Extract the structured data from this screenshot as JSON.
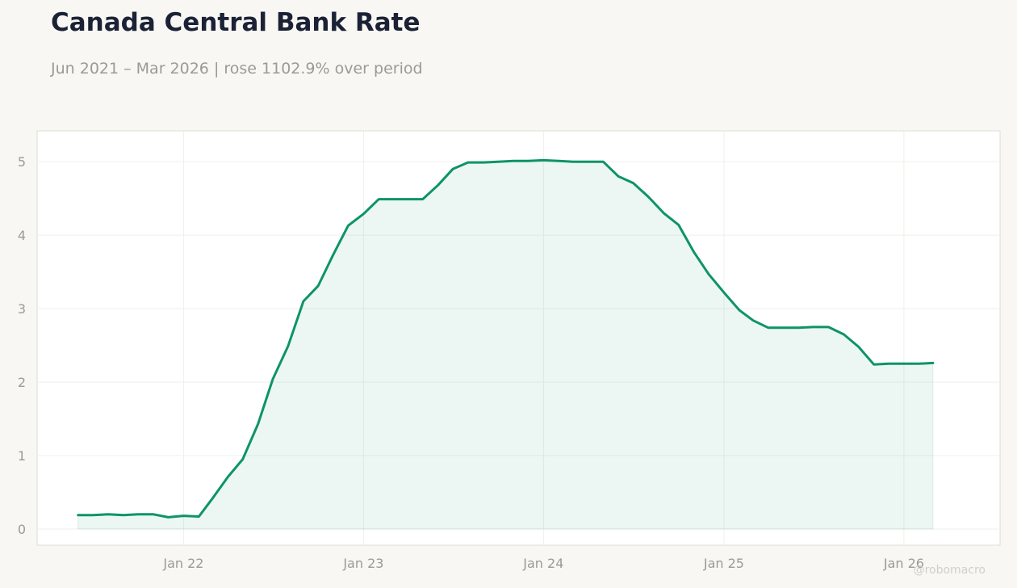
{
  "title": "Canada Central Bank Rate",
  "subtitle": "Jun 2021 – Mar 2026 | rose 1102.9% over period",
  "watermark": "@robomacro",
  "colors": {
    "line": "#0e9466",
    "fill": "#0e9466",
    "background": "#f8f7f3",
    "plot_background": "#ffffff"
  },
  "chart_data": {
    "type": "area",
    "x": [
      "2021-06",
      "2021-07",
      "2021-08",
      "2021-09",
      "2021-10",
      "2021-11",
      "2021-12",
      "2022-01",
      "2022-02",
      "2022-03",
      "2022-04",
      "2022-05",
      "2022-06",
      "2022-07",
      "2022-08",
      "2022-09",
      "2022-10",
      "2022-11",
      "2022-12",
      "2023-01",
      "2023-02",
      "2023-03",
      "2023-04",
      "2023-05",
      "2023-06",
      "2023-07",
      "2023-08",
      "2023-09",
      "2023-10",
      "2023-11",
      "2023-12",
      "2024-01",
      "2024-02",
      "2024-03",
      "2024-04",
      "2024-05",
      "2024-06",
      "2024-07",
      "2024-08",
      "2024-09",
      "2024-10",
      "2024-11",
      "2024-12",
      "2025-01",
      "2025-02",
      "2025-03",
      "2025-04",
      "2025-05",
      "2025-06",
      "2025-07",
      "2025-08",
      "2025-09",
      "2025-10",
      "2025-11",
      "2025-12",
      "2026-01",
      "2026-02",
      "2026-03"
    ],
    "values": [
      0.19,
      0.19,
      0.2,
      0.19,
      0.2,
      0.2,
      0.16,
      0.18,
      0.17,
      0.42,
      0.71,
      0.95,
      1.43,
      2.04,
      2.49,
      3.1,
      3.31,
      3.74,
      4.13,
      4.29,
      4.49,
      4.49,
      4.49,
      4.49,
      4.68,
      4.9,
      4.99,
      4.99,
      5.0,
      5.01,
      5.01,
      5.02,
      5.01,
      5.0,
      5.0,
      5.0,
      4.8,
      4.71,
      4.52,
      4.3,
      4.14,
      3.77,
      3.47,
      3.22,
      2.98,
      2.84,
      2.74,
      2.74,
      2.74,
      2.75,
      2.75,
      2.65,
      2.48,
      2.24,
      2.25,
      2.25,
      2.25,
      2.26
    ],
    "x_ticks": [
      "Jan 22",
      "Jan 23",
      "Jan 24",
      "Jan 25",
      "Jan 26"
    ],
    "x_tick_dates": [
      "2022-01",
      "2023-01",
      "2024-01",
      "2025-01",
      "2026-01"
    ],
    "y_ticks": [
      0,
      1,
      2,
      3,
      4,
      5
    ],
    "ylim": [
      -0.22,
      5.42
    ],
    "xlim": [
      "2021-03-10",
      "2026-07-15"
    ],
    "grid": true
  }
}
